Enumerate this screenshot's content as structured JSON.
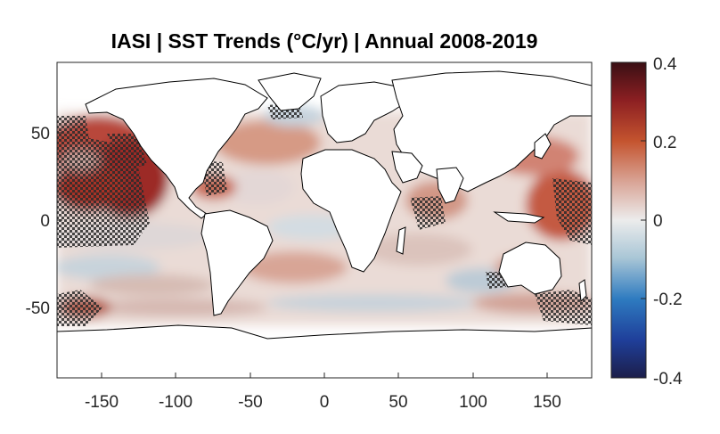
{
  "title": "IASI | SST Trends (°C/yr) | Annual 2008-2019",
  "map": {
    "type": "heatmap",
    "x_ticks": [
      "-150",
      "-100",
      "-50",
      "0",
      "50",
      "100",
      "150"
    ],
    "x_tick_values": [
      -150,
      -100,
      -50,
      0,
      50,
      100,
      150
    ],
    "y_ticks": [
      "50",
      "0",
      "-50"
    ],
    "y_tick_values": [
      50,
      0,
      -50
    ],
    "xlim": [
      -180,
      180
    ],
    "ylim": [
      -90,
      90
    ],
    "colorbar": {
      "ticks": [
        "0.4",
        "0.2",
        "0",
        "-0.2",
        "-0.4"
      ],
      "tick_values": [
        0.4,
        0.2,
        0,
        -0.2,
        -0.4
      ],
      "range": [
        -0.4,
        0.4
      ],
      "colormap": "balance (dark blue – white – dark red)",
      "stops": [
        "#1c1e4a",
        "#1f3f9a",
        "#2e7bc0",
        "#a9c6d6",
        "#ececec",
        "#d9a597",
        "#c4542f",
        "#8c1f22",
        "#3a0f14"
      ]
    },
    "stippling": "hatched areas = statistically significant trend",
    "land_color": "#ffffff",
    "coastline_color": "#000000"
  }
}
